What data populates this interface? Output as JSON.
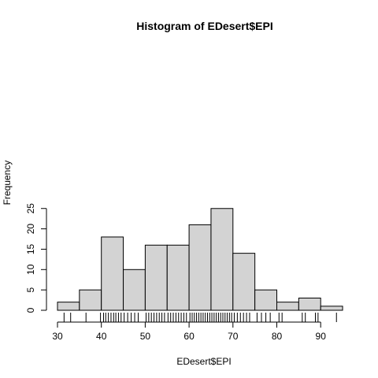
{
  "chart_data": {
    "type": "bar",
    "title": "Histogram of EDesert$EPI",
    "xlabel": "EDesert$EPI",
    "ylabel": "Frequency",
    "bin_edges": [
      30,
      35,
      40,
      45,
      50,
      55,
      60,
      65,
      70,
      75,
      80,
      85,
      90,
      95
    ],
    "values": [
      2,
      5,
      18,
      10,
      16,
      16,
      21,
      25,
      14,
      5,
      2,
      3,
      1
    ],
    "xlim": [
      30,
      95
    ],
    "ylim": [
      0,
      25
    ],
    "x_ticks": [
      30,
      40,
      50,
      60,
      70,
      80,
      90
    ],
    "y_ticks": [
      0,
      5,
      10,
      15,
      20,
      25
    ],
    "bar_fill": "#d3d3d3",
    "grid": false,
    "rug": [
      31.5,
      33,
      36.5,
      39.8,
      40.5,
      41,
      41.6,
      42.2,
      42.8,
      43.3,
      43.9,
      44.5,
      45.2,
      46,
      46.8,
      47.6,
      48.4,
      50.2,
      50.8,
      51.4,
      52,
      52.6,
      53.2,
      53.8,
      54.4,
      55.2,
      55.8,
      56.4,
      57,
      57.6,
      58.2,
      58.8,
      59.4,
      60.2,
      60.7,
      61.2,
      61.7,
      62.2,
      62.7,
      63.2,
      63.7,
      64.2,
      64.7,
      65.2,
      65.7,
      66.2,
      66.7,
      67.2,
      67.7,
      68.2,
      68.7,
      69.2,
      69.7,
      70.3,
      71,
      71.7,
      72.4,
      73.1,
      73.8,
      75.5,
      76.5,
      77.5,
      78.5,
      80.5,
      81.2,
      85.8,
      86.5,
      88.8,
      89.4,
      93.6
    ]
  }
}
